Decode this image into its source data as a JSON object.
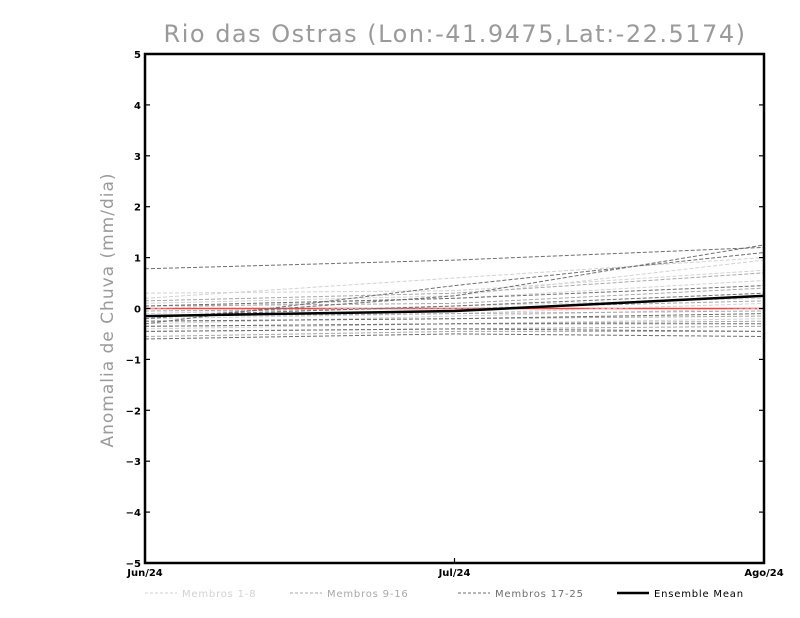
{
  "chart_data": {
    "type": "line",
    "title": "Rio das Ostras (Lon:-41.9475,Lat:-22.5174)",
    "xlabel": "",
    "ylabel": "Anomalia de Chuva (mm/dia)",
    "categories": [
      "Jun/24",
      "Jul/24",
      "Ago/24"
    ],
    "ylim": [
      -5,
      5
    ],
    "yticks": [
      -5,
      -4,
      -3,
      -2,
      -1,
      0,
      1,
      2,
      3,
      4,
      5
    ],
    "zero_line": {
      "value": 0,
      "color": "#ff4040"
    },
    "colors": {
      "group1": "#d2d2d2",
      "group2": "#a8a8a8",
      "group3": "#6e6e6e",
      "mean": "#000000"
    },
    "series": [
      {
        "name": "Membros 1-8",
        "group": 1,
        "values": [
          0.3,
          0.35,
          0.75
        ]
      },
      {
        "name": "Membros 1-8",
        "group": 1,
        "values": [
          0.2,
          0.6,
          1.0
        ]
      },
      {
        "name": "Membros 1-8",
        "group": 1,
        "values": [
          0.1,
          0.25,
          0.95
        ]
      },
      {
        "name": "Membros 1-8",
        "group": 1,
        "values": [
          0.0,
          0.2,
          0.55
        ]
      },
      {
        "name": "Membros 1-8",
        "group": 1,
        "values": [
          -0.1,
          0.05,
          0.2
        ]
      },
      {
        "name": "Membros 1-8",
        "group": 1,
        "values": [
          -0.2,
          -0.1,
          0.1
        ]
      },
      {
        "name": "Membros 1-8",
        "group": 1,
        "values": [
          -0.3,
          -0.15,
          0.0
        ]
      },
      {
        "name": "Membros 1-8",
        "group": 1,
        "values": [
          -0.4,
          -0.3,
          -0.2
        ]
      },
      {
        "name": "Membros 9-16",
        "group": 2,
        "values": [
          0.15,
          0.3,
          0.7
        ]
      },
      {
        "name": "Membros 9-16",
        "group": 2,
        "values": [
          0.05,
          0.1,
          0.4
        ]
      },
      {
        "name": "Membros 9-16",
        "group": 2,
        "values": [
          -0.05,
          0.0,
          0.15
        ]
      },
      {
        "name": "Membros 9-16",
        "group": 2,
        "values": [
          -0.15,
          -0.1,
          -0.05
        ]
      },
      {
        "name": "Membros 9-16",
        "group": 2,
        "values": [
          -0.25,
          -0.2,
          -0.15
        ]
      },
      {
        "name": "Membros 9-16",
        "group": 2,
        "values": [
          -0.35,
          -0.3,
          -0.25
        ]
      },
      {
        "name": "Membros 9-16",
        "group": 2,
        "values": [
          -0.45,
          -0.4,
          -0.35
        ]
      },
      {
        "name": "Membros 9-16",
        "group": 2,
        "values": [
          -0.55,
          -0.45,
          -0.45
        ]
      },
      {
        "name": "Membros 17-25",
        "group": 3,
        "values": [
          0.78,
          0.95,
          1.2
        ]
      },
      {
        "name": "Membros 17-25",
        "group": 3,
        "values": [
          -0.2,
          0.25,
          1.25
        ]
      },
      {
        "name": "Membros 17-25",
        "group": 3,
        "values": [
          -0.3,
          0.45,
          1.1
        ]
      },
      {
        "name": "Membros 17-25",
        "group": 3,
        "values": [
          0.05,
          0.2,
          0.45
        ]
      },
      {
        "name": "Membros 17-25",
        "group": 3,
        "values": [
          -0.15,
          0.05,
          0.3
        ]
      },
      {
        "name": "Membros 17-25",
        "group": 3,
        "values": [
          -0.25,
          -0.2,
          -0.1
        ]
      },
      {
        "name": "Membros 17-25",
        "group": 3,
        "values": [
          -0.35,
          -0.3,
          -0.3
        ]
      },
      {
        "name": "Membros 17-25",
        "group": 3,
        "values": [
          -0.45,
          -0.4,
          -0.45
        ]
      },
      {
        "name": "Membros 17-25",
        "group": 3,
        "values": [
          -0.6,
          -0.5,
          -0.55
        ]
      },
      {
        "name": "Ensemble Mean",
        "group": 0,
        "values": [
          -0.15,
          -0.05,
          0.25
        ]
      }
    ],
    "legend": [
      {
        "label": "Membros 1-8",
        "group": 1
      },
      {
        "label": "Membros 9-16",
        "group": 2
      },
      {
        "label": "Membros 17-25",
        "group": 3
      },
      {
        "label": "Ensemble Mean",
        "group": 0
      }
    ]
  }
}
